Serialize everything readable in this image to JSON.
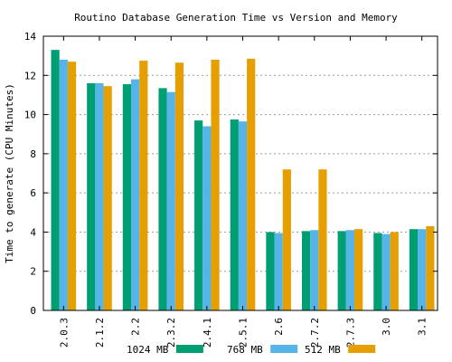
{
  "chart_data": {
    "type": "bar",
    "title": "Routino Database Generation Time vs Version and Memory",
    "xlabel": "",
    "ylabel": "Time to generate (CPU Minutes)",
    "ylim": [
      0,
      14
    ],
    "yticks": [
      0,
      2,
      4,
      6,
      8,
      10,
      12,
      14
    ],
    "grid": true,
    "legend_position": "bottom",
    "categories": [
      "2.0.3",
      "2.1.2",
      "2.2",
      "2.3.2",
      "2.4.1",
      "2.5.1",
      "2.6",
      "2.7.2",
      "2.7.3",
      "3.0",
      "3.1"
    ],
    "series": [
      {
        "name": "1024 MB",
        "color": "#009e73",
        "values": [
          13.3,
          11.6,
          11.55,
          11.35,
          9.7,
          9.75,
          4.0,
          4.05,
          4.05,
          3.95,
          4.15
        ]
      },
      {
        "name": "768 MB",
        "color": "#56b4e9",
        "values": [
          12.8,
          11.6,
          11.8,
          11.15,
          9.4,
          9.65,
          3.95,
          4.1,
          4.1,
          3.9,
          4.15
        ]
      },
      {
        "name": "512 MB",
        "color": "#e69f00",
        "values": [
          12.7,
          11.45,
          12.75,
          12.65,
          12.8,
          12.85,
          7.2,
          7.2,
          4.15,
          4.0,
          4.3
        ]
      }
    ]
  }
}
